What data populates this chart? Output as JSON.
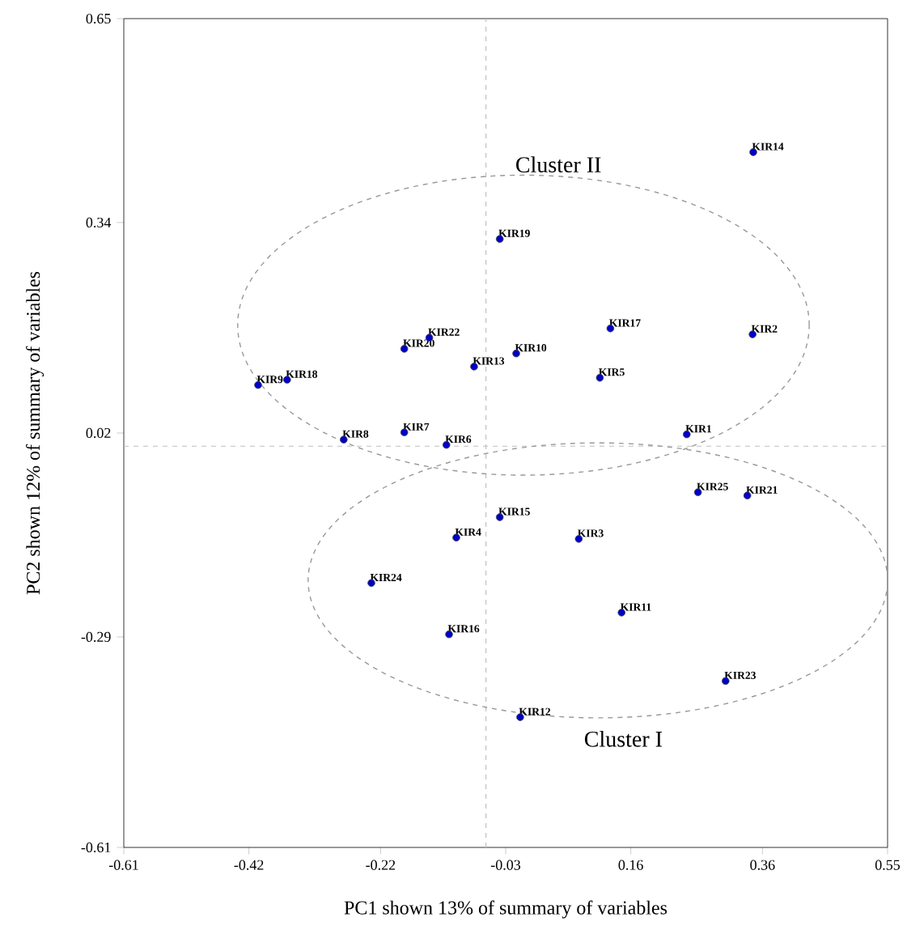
{
  "chart_data": {
    "type": "scatter",
    "xlabel": "PC1 shown 13% of summary of variables",
    "ylabel": "PC2 shown 12% of summary of variables",
    "xlim": [
      -0.61,
      0.55
    ],
    "ylim": [
      -0.61,
      0.65
    ],
    "xticks": [
      -0.61,
      -0.42,
      -0.22,
      -0.03,
      0.16,
      0.36,
      0.55
    ],
    "yticks": [
      -0.61,
      -0.29,
      0.02,
      0.34,
      0.65
    ],
    "grid": false,
    "marker": "circle",
    "ref_lines": [
      {
        "axis": "x",
        "value": -0.06,
        "color": "#c0c0c0",
        "line_style": "dashed"
      },
      {
        "axis": "y",
        "value": 0.0,
        "color": "#c0c0c0",
        "line_style": "dashed"
      }
    ],
    "annotations": [
      "Cluster II",
      "Cluster I"
    ],
    "series": [
      {
        "color": "#0000c8",
        "x": [
          0.346,
          -0.039,
          0.129,
          0.345,
          -0.146,
          -0.184,
          -0.014,
          -0.078,
          0.113,
          -0.406,
          -0.362,
          0.245,
          -0.276,
          -0.184,
          -0.12,
          0.262,
          0.337,
          -0.039,
          -0.105,
          0.081,
          -0.234,
          0.146,
          -0.116,
          0.304,
          -0.008
        ],
        "values": [
          0.447,
          0.315,
          0.179,
          0.17,
          0.165,
          0.148,
          0.141,
          0.121,
          0.104,
          0.093,
          0.101,
          0.018,
          0.01,
          0.021,
          0.002,
          -0.07,
          -0.075,
          -0.108,
          -0.139,
          -0.141,
          -0.208,
          -0.253,
          -0.286,
          -0.357,
          -0.412
        ],
        "value_labels": [
          "KIR14",
          "KIR19",
          "KIR17",
          "KIR2",
          "KIR22",
          "KIR20",
          "KIR10",
          "KIR13",
          "KIR5",
          "KIR9",
          "KIR18",
          "KIR1",
          "KIR8",
          "KIR7",
          "KIR6",
          "KIR25",
          "KIR21",
          "KIR15",
          "KIR4",
          "KIR3",
          "KIR24",
          "KIR11",
          "KIR16",
          "KIR23",
          "KIR12"
        ]
      }
    ]
  }
}
